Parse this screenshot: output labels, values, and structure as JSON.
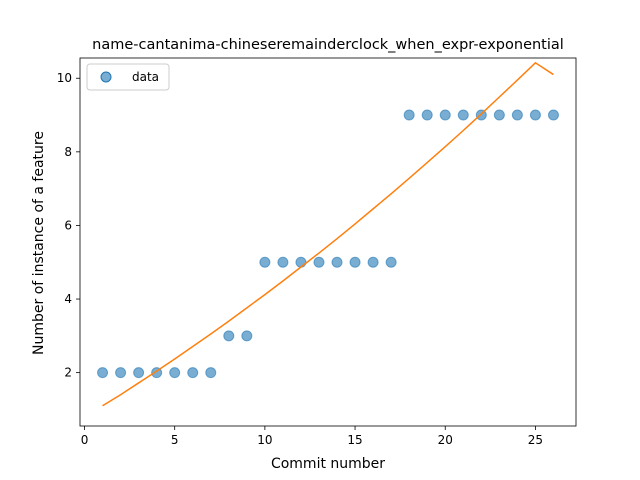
{
  "chart_data": {
    "type": "scatter",
    "title": "name-cantanima-chineseremainderclock_when_expr-exponential",
    "xlabel": "Commit number",
    "ylabel": "Number of instance of a feature",
    "xlim": [
      -0.25,
      27.25
    ],
    "ylim": [
      0.55,
      10.55
    ],
    "xticks": [
      0,
      5,
      10,
      15,
      20,
      25
    ],
    "yticks": [
      2,
      4,
      6,
      8,
      10
    ],
    "grid": false,
    "legend": {
      "position": "top-left",
      "entries": [
        "data"
      ]
    },
    "series": [
      {
        "name": "data",
        "kind": "scatter",
        "color": "#1f77b4",
        "x": [
          1,
          2,
          3,
          4,
          5,
          6,
          7,
          8,
          9,
          10,
          11,
          12,
          13,
          14,
          15,
          16,
          17,
          18,
          19,
          20,
          21,
          22,
          23,
          24,
          25,
          26
        ],
        "y": [
          2,
          2,
          2,
          2,
          2,
          2,
          2,
          3,
          3,
          5,
          5,
          5,
          5,
          5,
          5,
          5,
          5,
          9,
          9,
          9,
          9,
          9,
          9,
          9,
          9,
          9
        ]
      },
      {
        "kind": "line",
        "color": "#ff7f0e",
        "x": [
          1,
          2,
          3,
          4,
          5,
          6,
          7,
          8,
          9,
          10,
          11,
          12,
          13,
          14,
          15,
          16,
          17,
          18,
          19,
          20,
          21,
          22,
          23,
          24,
          25,
          26
        ],
        "y": [
          1.1,
          1.4,
          1.72,
          2.04,
          2.37,
          2.71,
          3.05,
          3.4,
          3.76,
          4.12,
          4.49,
          4.87,
          5.25,
          5.64,
          6.04,
          6.45,
          6.86,
          7.28,
          7.71,
          8.14,
          8.58,
          9.03,
          9.49,
          9.95,
          10.42,
          10.1
        ]
      }
    ]
  }
}
